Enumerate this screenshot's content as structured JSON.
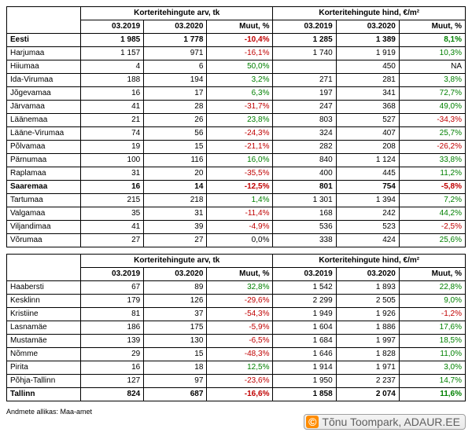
{
  "headers": {
    "group_count": "Korteritehingute arv, tk",
    "group_price": "Korteritehingute hind, €/m²",
    "col_2019": "03.2019",
    "col_2020": "03.2020",
    "col_change": "Muut, %"
  },
  "table1": [
    {
      "name": "Eesti",
      "bold": true,
      "c19": "1 985",
      "c20": "1 778",
      "cpct": "-10,4%",
      "csign": "neg",
      "p19": "1 285",
      "p20": "1 389",
      "ppct": "8,1%",
      "psign": "pos"
    },
    {
      "name": "Harjumaa",
      "bold": false,
      "c19": "1 157",
      "c20": "971",
      "cpct": "-16,1%",
      "csign": "neg",
      "p19": "1 740",
      "p20": "1 919",
      "ppct": "10,3%",
      "psign": "pos"
    },
    {
      "name": "Hiiumaa",
      "bold": false,
      "c19": "4",
      "c20": "6",
      "cpct": "50,0%",
      "csign": "pos",
      "p19": "",
      "p20": "450",
      "ppct": "NA",
      "psign": "neutral"
    },
    {
      "name": "Ida-Virumaa",
      "bold": false,
      "c19": "188",
      "c20": "194",
      "cpct": "3,2%",
      "csign": "pos",
      "p19": "271",
      "p20": "281",
      "ppct": "3,8%",
      "psign": "pos"
    },
    {
      "name": "Jõgevamaa",
      "bold": false,
      "c19": "16",
      "c20": "17",
      "cpct": "6,3%",
      "csign": "pos",
      "p19": "197",
      "p20": "341",
      "ppct": "72,7%",
      "psign": "pos"
    },
    {
      "name": "Järvamaa",
      "bold": false,
      "c19": "41",
      "c20": "28",
      "cpct": "-31,7%",
      "csign": "neg",
      "p19": "247",
      "p20": "368",
      "ppct": "49,0%",
      "psign": "pos"
    },
    {
      "name": "Läänemaa",
      "bold": false,
      "c19": "21",
      "c20": "26",
      "cpct": "23,8%",
      "csign": "pos",
      "p19": "803",
      "p20": "527",
      "ppct": "-34,3%",
      "psign": "neg"
    },
    {
      "name": "Lääne-Virumaa",
      "bold": false,
      "c19": "74",
      "c20": "56",
      "cpct": "-24,3%",
      "csign": "neg",
      "p19": "324",
      "p20": "407",
      "ppct": "25,7%",
      "psign": "pos"
    },
    {
      "name": "Põlvamaa",
      "bold": false,
      "c19": "19",
      "c20": "15",
      "cpct": "-21,1%",
      "csign": "neg",
      "p19": "282",
      "p20": "208",
      "ppct": "-26,2%",
      "psign": "neg"
    },
    {
      "name": "Pärnumaa",
      "bold": false,
      "c19": "100",
      "c20": "116",
      "cpct": "16,0%",
      "csign": "pos",
      "p19": "840",
      "p20": "1 124",
      "ppct": "33,8%",
      "psign": "pos"
    },
    {
      "name": "Raplamaa",
      "bold": false,
      "c19": "31",
      "c20": "20",
      "cpct": "-35,5%",
      "csign": "neg",
      "p19": "400",
      "p20": "445",
      "ppct": "11,2%",
      "psign": "pos"
    },
    {
      "name": "Saaremaa",
      "bold": false,
      "c19": "16",
      "c20": "14",
      "cpct": "-12,5%",
      "csign": "neg",
      "p19": "801",
      "p20": "754",
      "ppct": "-5,8%",
      "psign": "neg",
      "boldRow": true
    },
    {
      "name": "Tartumaa",
      "bold": false,
      "c19": "215",
      "c20": "218",
      "cpct": "1,4%",
      "csign": "pos",
      "p19": "1 301",
      "p20": "1 394",
      "ppct": "7,2%",
      "psign": "pos"
    },
    {
      "name": "Valgamaa",
      "bold": false,
      "c19": "35",
      "c20": "31",
      "cpct": "-11,4%",
      "csign": "neg",
      "p19": "168",
      "p20": "242",
      "ppct": "44,2%",
      "psign": "pos"
    },
    {
      "name": "Viljandimaa",
      "bold": false,
      "c19": "41",
      "c20": "39",
      "cpct": "-4,9%",
      "csign": "neg",
      "p19": "536",
      "p20": "523",
      "ppct": "-2,5%",
      "psign": "neg"
    },
    {
      "name": "Võrumaa",
      "bold": false,
      "c19": "27",
      "c20": "27",
      "cpct": "0,0%",
      "csign": "neutral",
      "p19": "338",
      "p20": "424",
      "ppct": "25,6%",
      "psign": "pos"
    }
  ],
  "table2": [
    {
      "name": "Haabersti",
      "bold": false,
      "c19": "67",
      "c20": "89",
      "cpct": "32,8%",
      "csign": "pos",
      "p19": "1 542",
      "p20": "1 893",
      "ppct": "22,8%",
      "psign": "pos"
    },
    {
      "name": "Kesklinn",
      "bold": false,
      "c19": "179",
      "c20": "126",
      "cpct": "-29,6%",
      "csign": "neg",
      "p19": "2 299",
      "p20": "2 505",
      "ppct": "9,0%",
      "psign": "pos"
    },
    {
      "name": "Kristiine",
      "bold": false,
      "c19": "81",
      "c20": "37",
      "cpct": "-54,3%",
      "csign": "neg",
      "p19": "1 949",
      "p20": "1 926",
      "ppct": "-1,2%",
      "psign": "neg"
    },
    {
      "name": "Lasnamäe",
      "bold": false,
      "c19": "186",
      "c20": "175",
      "cpct": "-5,9%",
      "csign": "neg",
      "p19": "1 604",
      "p20": "1 886",
      "ppct": "17,6%",
      "psign": "pos"
    },
    {
      "name": "Mustamäe",
      "bold": false,
      "c19": "139",
      "c20": "130",
      "cpct": "-6,5%",
      "csign": "neg",
      "p19": "1 684",
      "p20": "1 997",
      "ppct": "18,5%",
      "psign": "pos"
    },
    {
      "name": "Nõmme",
      "bold": false,
      "c19": "29",
      "c20": "15",
      "cpct": "-48,3%",
      "csign": "neg",
      "p19": "1 646",
      "p20": "1 828",
      "ppct": "11,0%",
      "psign": "pos"
    },
    {
      "name": "Pirita",
      "bold": false,
      "c19": "16",
      "c20": "18",
      "cpct": "12,5%",
      "csign": "pos",
      "p19": "1 914",
      "p20": "1 971",
      "ppct": "3,0%",
      "psign": "pos"
    },
    {
      "name": "Põhja-Tallinn",
      "bold": false,
      "c19": "127",
      "c20": "97",
      "cpct": "-23,6%",
      "csign": "neg",
      "p19": "1 950",
      "p20": "2 237",
      "ppct": "14,7%",
      "psign": "pos"
    },
    {
      "name": "Tallinn",
      "bold": true,
      "c19": "824",
      "c20": "687",
      "cpct": "-16,6%",
      "csign": "neg",
      "p19": "1 858",
      "p20": "2 074",
      "ppct": "11,6%",
      "psign": "pos"
    }
  ],
  "source": "Andmete allikas: Maa-amet",
  "credit_symbol": "©",
  "credit_text": "Tõnu Toompark, ADAUR.EE"
}
